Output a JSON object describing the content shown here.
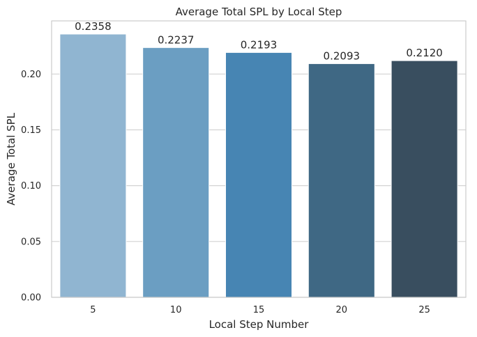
{
  "chart_data": {
    "type": "bar",
    "title": "Average Total SPL by Local Step",
    "xlabel": "Local Step Number",
    "ylabel": "Average Total SPL",
    "categories": [
      "5",
      "10",
      "15",
      "20",
      "25"
    ],
    "values": [
      0.2358,
      0.2237,
      0.2193,
      0.2093,
      0.212
    ],
    "value_labels": [
      "0.2358",
      "0.2237",
      "0.2193",
      "0.2093",
      "0.2120"
    ],
    "yticks": [
      "0.00",
      "0.05",
      "0.10",
      "0.15",
      "0.20"
    ],
    "ytick_values": [
      0,
      0.05,
      0.1,
      0.15,
      0.2
    ],
    "ylim": [
      0,
      0.2476
    ],
    "grid": "horizontal",
    "bar_colors": [
      "#90b5d1",
      "#6b9ec2",
      "#4785b3",
      "#3f6884",
      "#394e5f"
    ],
    "grid_color": "#d3d3d3",
    "spine_color": "#cccccc"
  }
}
